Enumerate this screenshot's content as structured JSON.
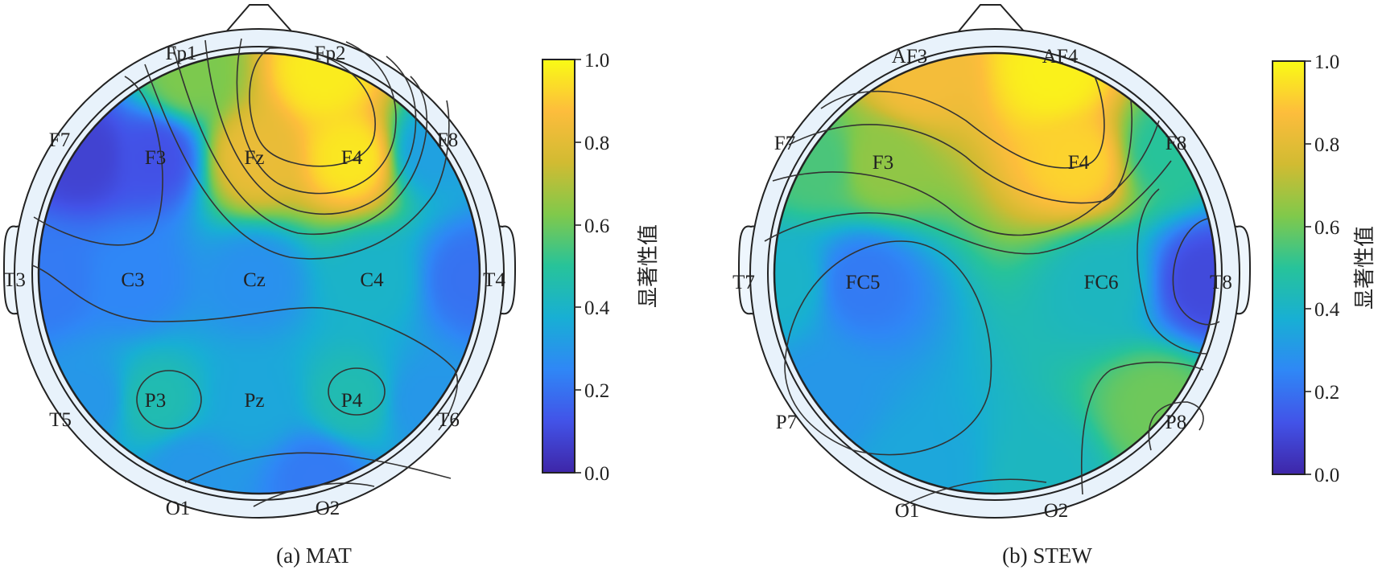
{
  "colorbar": {
    "ticks": [
      "0.0",
      "0.2",
      "0.4",
      "0.6",
      "0.8",
      "1.0"
    ],
    "label": "显著性值",
    "colors": [
      "#3e26a8",
      "#4253e8",
      "#2f87f6",
      "#18afd4",
      "#27c39a",
      "#80c94b",
      "#d1bb32",
      "#fdbd3c",
      "#f9fb15"
    ]
  },
  "chart_data": [
    {
      "type": "heatmap",
      "caption": "(a) MAT",
      "value_range": [
        0,
        1
      ],
      "electrodes": [
        {
          "label": "Fp1",
          "value": 0.62
        },
        {
          "label": "Fp2",
          "value": 0.97
        },
        {
          "label": "F7",
          "value": 0.08
        },
        {
          "label": "F3",
          "value": 0.12
        },
        {
          "label": "Fz",
          "value": 0.82
        },
        {
          "label": "F4",
          "value": 0.96
        },
        {
          "label": "F8",
          "value": 0.33
        },
        {
          "label": "T3",
          "value": 0.22
        },
        {
          "label": "C3",
          "value": 0.25
        },
        {
          "label": "Cz",
          "value": 0.28
        },
        {
          "label": "C4",
          "value": 0.4
        },
        {
          "label": "T4",
          "value": 0.2
        },
        {
          "label": "T5",
          "value": 0.3
        },
        {
          "label": "P3",
          "value": 0.45
        },
        {
          "label": "Pz",
          "value": 0.35
        },
        {
          "label": "P4",
          "value": 0.45
        },
        {
          "label": "T6",
          "value": 0.3
        },
        {
          "label": "O1",
          "value": 0.3
        },
        {
          "label": "O2",
          "value": 0.22
        }
      ]
    },
    {
      "type": "heatmap",
      "caption": "(b) STEW",
      "value_range": [
        0,
        1
      ],
      "electrodes": [
        {
          "label": "AF3",
          "value": 0.85
        },
        {
          "label": "AF4",
          "value": 0.98
        },
        {
          "label": "F7",
          "value": 0.55
        },
        {
          "label": "F3",
          "value": 0.65
        },
        {
          "label": "F4",
          "value": 0.92
        },
        {
          "label": "F8",
          "value": 0.5
        },
        {
          "label": "T7",
          "value": 0.4
        },
        {
          "label": "FC5",
          "value": 0.22
        },
        {
          "label": "FC6",
          "value": 0.42
        },
        {
          "label": "T8",
          "value": 0.1
        },
        {
          "label": "P7",
          "value": 0.3
        },
        {
          "label": "P8",
          "value": 0.6
        },
        {
          "label": "O1",
          "value": 0.35
        },
        {
          "label": "O2",
          "value": 0.42
        }
      ]
    }
  ]
}
